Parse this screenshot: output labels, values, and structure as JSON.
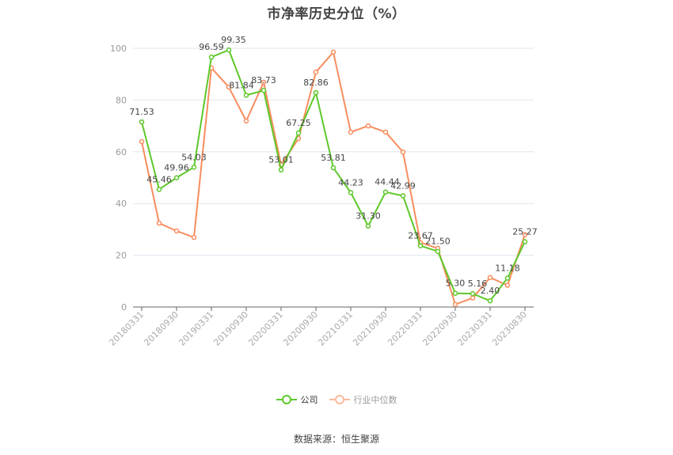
{
  "title": "市净率历史分位（%）",
  "legend": {
    "company": "公司",
    "industry": "行业中位数"
  },
  "source": "数据来源：恒生聚源",
  "colors": {
    "company": "#5ec82a",
    "industry": "#f88d5e",
    "grid": "#e0e4ee",
    "axis": "#666666"
  },
  "chart_data": {
    "type": "line",
    "title": "市净率历史分位（%）",
    "xlabel": "",
    "ylabel": "",
    "ylim": [
      0,
      100
    ],
    "yticks": [
      0,
      20,
      40,
      60,
      80,
      100
    ],
    "grid": true,
    "legend_position": "bottom",
    "x": [
      "20180331",
      "20180630",
      "20180930",
      "20181231",
      "20190331",
      "20190630",
      "20190930",
      "20191231",
      "20200331",
      "20200630",
      "20200930",
      "20201231",
      "20210331",
      "20210630",
      "20210930",
      "20211231",
      "20220331",
      "20220630",
      "20220930",
      "20221231",
      "20230331",
      "20230630",
      "20230830"
    ],
    "x_tick_labels": [
      "20180331",
      "20180930",
      "20190331",
      "20190930",
      "20200331",
      "20200930",
      "20210331",
      "20210930",
      "20220331",
      "20220930",
      "20230331",
      "20230830"
    ],
    "series": [
      {
        "name": "公司",
        "values": [
          71.53,
          45.46,
          49.96,
          54.03,
          96.59,
          99.35,
          81.84,
          83.73,
          53.01,
          67.25,
          82.86,
          53.81,
          44.23,
          31.3,
          44.44,
          42.99,
          23.67,
          21.5,
          5.3,
          5.16,
          2.4,
          11.18,
          25.27
        ],
        "labels": [
          "71.53",
          "45.46",
          "49.96",
          "54.03",
          "96.59",
          "99.35",
          "81.84",
          "83.73",
          "53.01",
          "67.25",
          "82.86",
          "53.81",
          "44.23",
          "31.30",
          "44.44",
          "42.99",
          "23.67",
          "21.50",
          "5.30",
          "5.16",
          "2.40",
          "11.18",
          "25.27"
        ]
      },
      {
        "name": "行业中位数",
        "values": [
          63.9,
          32.4,
          29.4,
          26.9,
          92.4,
          85.0,
          71.9,
          86.9,
          55.0,
          65.1,
          90.8,
          98.5,
          67.6,
          70.0,
          67.6,
          59.9,
          24.9,
          22.7,
          1.0,
          3.5,
          11.4,
          8.4,
          28.0
        ]
      }
    ]
  }
}
